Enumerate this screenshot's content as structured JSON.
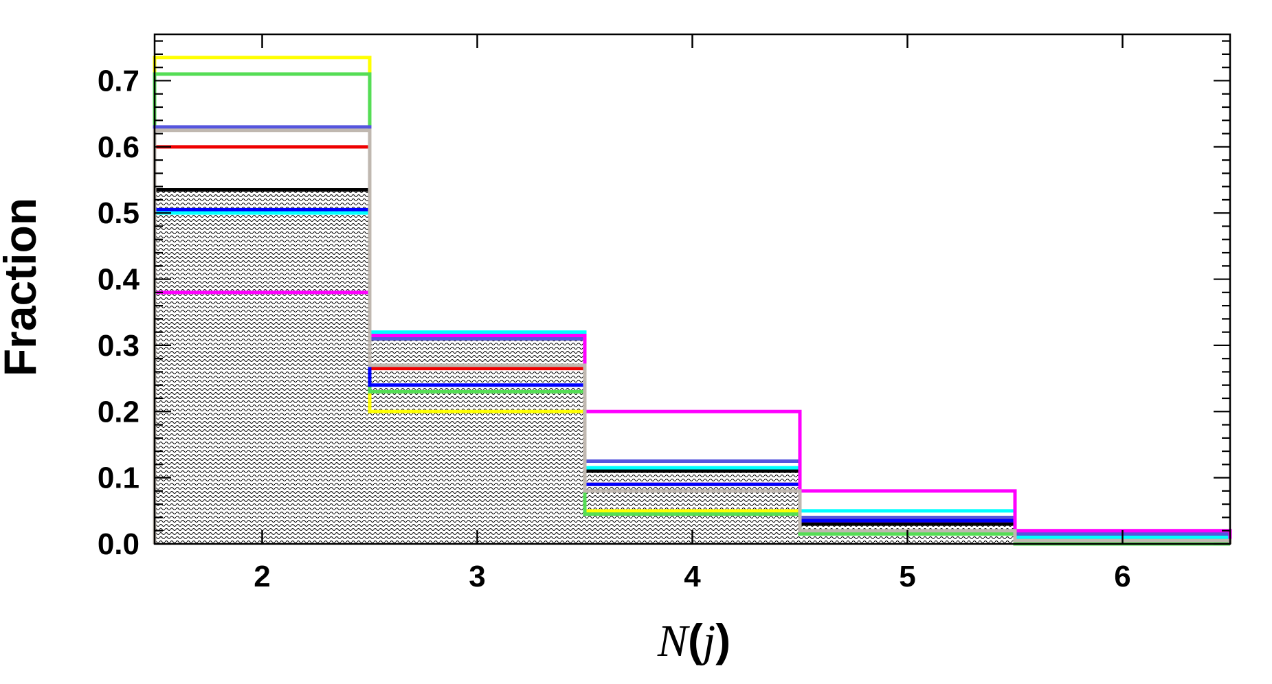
{
  "chart_data": {
    "type": "bar",
    "subtype": "step-histogram",
    "x": [
      2,
      3,
      4,
      5,
      6
    ],
    "xlim": [
      1.5,
      6.5
    ],
    "ylim": [
      0.0,
      0.77
    ],
    "xticks": [
      "2",
      "3",
      "4",
      "5",
      "6"
    ],
    "yticks": [
      "0.0",
      "0.1",
      "0.2",
      "0.3",
      "0.4",
      "0.5",
      "0.6",
      "0.7"
    ],
    "xlabel": {
      "var": "N",
      "open": "(",
      "arg": "j",
      "close": ")"
    },
    "ylabel": "Fraction",
    "grid": false,
    "filled_series": {
      "color": "#000000",
      "fill": "wavy-hatch",
      "values": [
        0.535,
        0.31,
        0.11,
        0.03,
        0.01
      ]
    },
    "series": [
      {
        "color": "#ffff00",
        "values": [
          0.735,
          0.2,
          0.05,
          0.015,
          0.0
        ]
      },
      {
        "color": "#55dd55",
        "values": [
          0.71,
          0.23,
          0.045,
          0.015,
          0.0
        ]
      },
      {
        "color": "#5555dd",
        "values": [
          0.63,
          0.31,
          0.125,
          0.04,
          0.015
        ]
      },
      {
        "color": "#ee0000",
        "values": [
          0.6,
          0.265,
          0.09,
          0.035,
          0.01
        ]
      },
      {
        "color": "#0000ff",
        "values": [
          0.505,
          0.24,
          0.09,
          0.035,
          0.01
        ]
      },
      {
        "color": "#00ffff",
        "values": [
          0.5,
          0.32,
          0.115,
          0.05,
          0.01
        ]
      },
      {
        "color": "#ff00ff",
        "values": [
          0.38,
          0.315,
          0.2,
          0.08,
          0.02
        ]
      },
      {
        "color": "#c0b8b0",
        "values": [
          0.625,
          0.27,
          0.08,
          0.02,
          0.005
        ]
      }
    ]
  }
}
